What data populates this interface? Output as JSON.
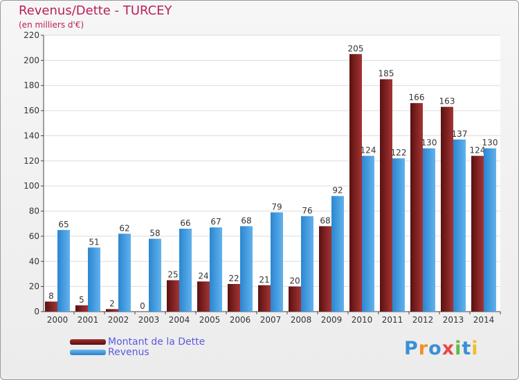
{
  "chart_data": {
    "type": "bar",
    "title": "Revenus/Dette - TURCEY",
    "subtitle": "(en milliers d'€)",
    "categories": [
      "2000",
      "2001",
      "2002",
      "2003",
      "2004",
      "2005",
      "2006",
      "2007",
      "2008",
      "2009",
      "2010",
      "2011",
      "2012",
      "2013",
      "2014"
    ],
    "series": [
      {
        "name": "Montant de la Dette",
        "color": "#7a1e1e",
        "values": [
          8,
          5,
          2,
          0,
          25,
          24,
          22,
          21,
          20,
          68,
          205,
          185,
          166,
          163,
          124
        ]
      },
      {
        "name": "Revenus",
        "color": "#3f9ee0",
        "values": [
          65,
          51,
          62,
          58,
          66,
          67,
          68,
          79,
          76,
          92,
          124,
          122,
          130,
          137,
          130
        ]
      }
    ],
    "ylim": [
      0,
      220
    ],
    "yticks": [
      0,
      20,
      40,
      60,
      80,
      100,
      120,
      140,
      160,
      180,
      200,
      220
    ],
    "grid": true,
    "legend_position": "bottom-left"
  },
  "logo": {
    "text": "Proxiti",
    "letters": [
      {
        "ch": "P",
        "color": "#3a8fd8"
      },
      {
        "ch": "r",
        "color": "#f0902a"
      },
      {
        "ch": "o",
        "color": "#3a8fd8"
      },
      {
        "ch": "x",
        "color": "#e84848"
      },
      {
        "ch": "i",
        "color": "#62b848"
      },
      {
        "ch": "t",
        "color": "#3a8fd8"
      },
      {
        "ch": "i",
        "color": "#f0c020"
      }
    ]
  }
}
